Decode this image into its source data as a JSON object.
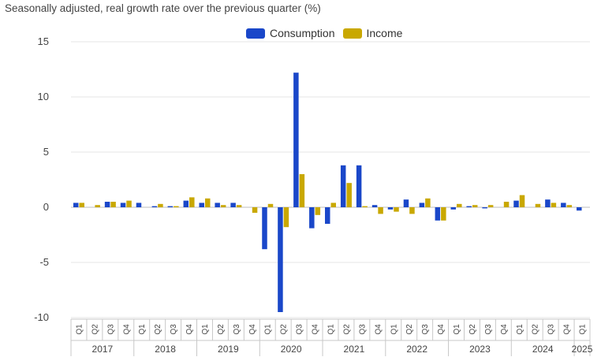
{
  "chart_data": {
    "type": "bar",
    "title": "Seasonally adjusted, real growth rate over the previous quarter (%)",
    "xlabel": "",
    "ylabel": "",
    "ylim": [
      -10,
      15
    ],
    "yticks": [
      15,
      10,
      5,
      0,
      -5,
      -10
    ],
    "grid": true,
    "legend_position": "top-center",
    "quarter_labels": [
      "Q1",
      "Q2",
      "Q3",
      "Q4"
    ],
    "years": [
      "2017",
      "2018",
      "2019",
      "2020",
      "2021",
      "2022",
      "2023",
      "2024",
      "2025"
    ],
    "categories": [
      "2017 Q1",
      "2017 Q2",
      "2017 Q3",
      "2017 Q4",
      "2018 Q1",
      "2018 Q2",
      "2018 Q3",
      "2018 Q4",
      "2019 Q1",
      "2019 Q2",
      "2019 Q3",
      "2019 Q4",
      "2020 Q1",
      "2020 Q2",
      "2020 Q3",
      "2020 Q4",
      "2021 Q1",
      "2021 Q2",
      "2021 Q3",
      "2021 Q4",
      "2022 Q1",
      "2022 Q2",
      "2022 Q3",
      "2022 Q4",
      "2023 Q1",
      "2023 Q2",
      "2023 Q3",
      "2023 Q4",
      "2024 Q1",
      "2024 Q2",
      "2024 Q3",
      "2024 Q4",
      "2025 Q1"
    ],
    "series": [
      {
        "name": "Consumption",
        "color": "#1a47c9",
        "values": [
          0.4,
          0.0,
          0.5,
          0.4,
          0.4,
          0.1,
          0.1,
          0.6,
          0.4,
          0.4,
          0.4,
          0.0,
          -3.8,
          -9.5,
          12.2,
          -1.9,
          -1.5,
          3.8,
          3.8,
          0.2,
          -0.2,
          0.7,
          0.4,
          -1.2,
          -0.2,
          0.1,
          -0.1,
          0.0,
          0.6,
          0.0,
          0.7,
          0.4,
          -0.3
        ]
      },
      {
        "name": "Income",
        "color": "#c9a800",
        "values": [
          0.4,
          0.2,
          0.5,
          0.6,
          0.0,
          0.3,
          0.1,
          0.9,
          0.8,
          0.2,
          0.2,
          -0.5,
          0.3,
          -1.8,
          3.0,
          -0.7,
          0.4,
          2.2,
          0.1,
          -0.6,
          -0.4,
          -0.6,
          0.8,
          -1.2,
          0.3,
          0.2,
          0.2,
          0.5,
          1.1,
          0.3,
          0.4,
          0.2,
          0.0
        ]
      }
    ]
  }
}
